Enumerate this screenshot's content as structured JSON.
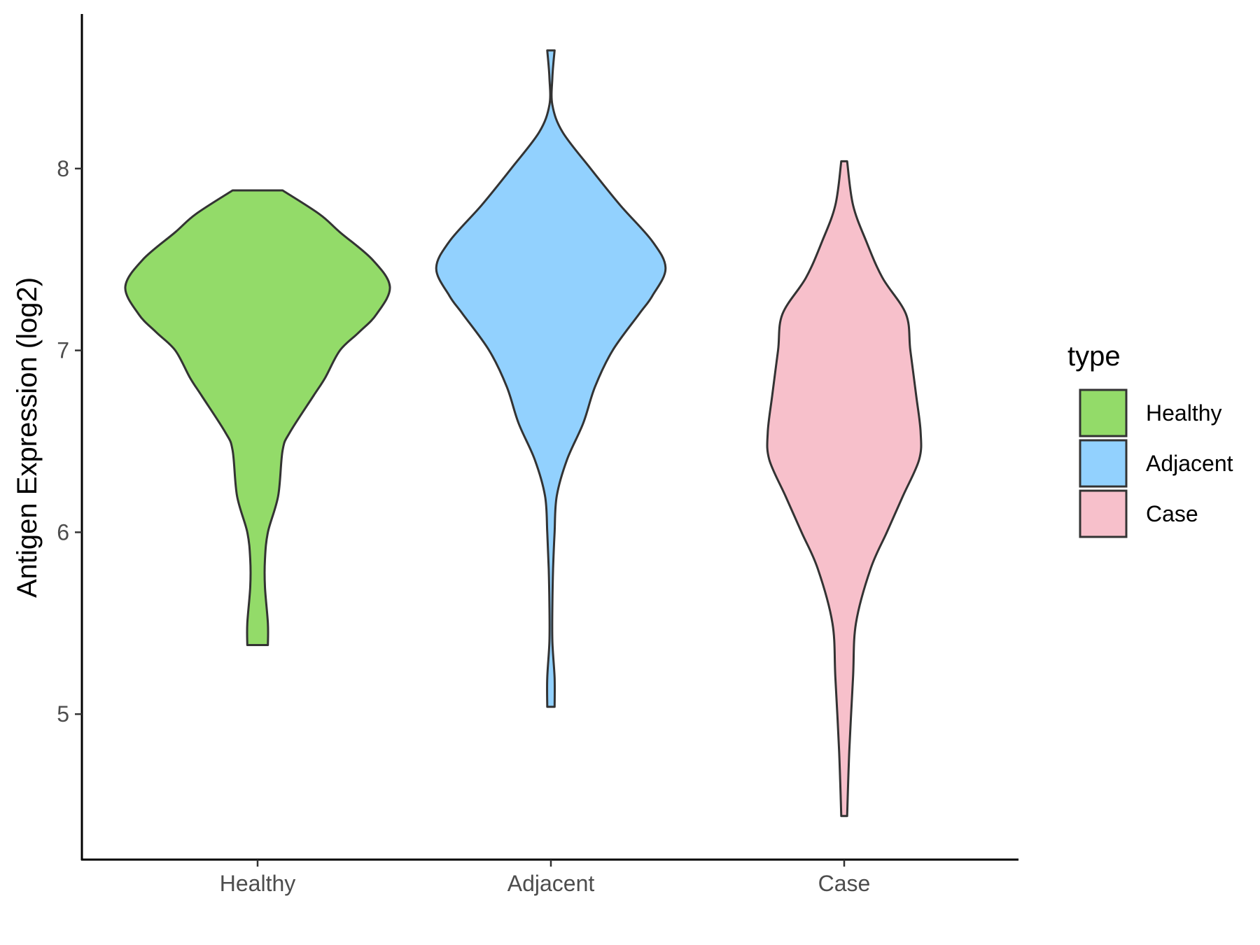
{
  "chart_data": {
    "type": "violin",
    "ylabel": "Antigen Expression (log2)",
    "xlabel": "",
    "ylim": [
      4.2,
      8.85
    ],
    "yticks": [
      5,
      6,
      7,
      8
    ],
    "categories": [
      "Healthy",
      "Adjacent",
      "Case"
    ],
    "legend": {
      "title": "type",
      "placement": "right"
    },
    "grid": false,
    "series": [
      {
        "name": "Healthy",
        "color": "#93DB69",
        "min": 5.38,
        "max": 7.88,
        "density": [
          [
            5.38,
            0.07
          ],
          [
            5.5,
            0.07
          ],
          [
            5.7,
            0.05
          ],
          [
            5.85,
            0.05
          ],
          [
            6.0,
            0.07
          ],
          [
            6.2,
            0.14
          ],
          [
            6.45,
            0.17
          ],
          [
            6.55,
            0.22
          ],
          [
            6.75,
            0.38
          ],
          [
            6.85,
            0.46
          ],
          [
            7.0,
            0.56
          ],
          [
            7.1,
            0.69
          ],
          [
            7.2,
            0.81
          ],
          [
            7.35,
            0.9
          ],
          [
            7.5,
            0.78
          ],
          [
            7.65,
            0.56
          ],
          [
            7.75,
            0.42
          ],
          [
            7.88,
            0.17
          ]
        ]
      },
      {
        "name": "Adjacent",
        "color": "#92D1FE",
        "min": 5.04,
        "max": 8.65,
        "density": [
          [
            5.04,
            0.025
          ],
          [
            5.2,
            0.025
          ],
          [
            5.4,
            0.01
          ],
          [
            5.6,
            0.01
          ],
          [
            5.8,
            0.015
          ],
          [
            6.0,
            0.025
          ],
          [
            6.2,
            0.04
          ],
          [
            6.4,
            0.11
          ],
          [
            6.6,
            0.22
          ],
          [
            6.8,
            0.3
          ],
          [
            7.0,
            0.42
          ],
          [
            7.2,
            0.6
          ],
          [
            7.3,
            0.69
          ],
          [
            7.45,
            0.78
          ],
          [
            7.6,
            0.69
          ],
          [
            7.8,
            0.47
          ],
          [
            8.0,
            0.27
          ],
          [
            8.2,
            0.08
          ],
          [
            8.35,
            0.01
          ],
          [
            8.5,
            0.01
          ],
          [
            8.65,
            0.025
          ]
        ]
      },
      {
        "name": "Case",
        "color": "#F7C0CB",
        "min": 4.44,
        "max": 8.04,
        "density": [
          [
            4.44,
            0.02
          ],
          [
            4.8,
            0.035
          ],
          [
            5.2,
            0.06
          ],
          [
            5.5,
            0.08
          ],
          [
            5.8,
            0.18
          ],
          [
            6.0,
            0.29
          ],
          [
            6.2,
            0.4
          ],
          [
            6.4,
            0.51
          ],
          [
            6.55,
            0.52
          ],
          [
            6.75,
            0.49
          ],
          [
            7.0,
            0.45
          ],
          [
            7.2,
            0.42
          ],
          [
            7.4,
            0.26
          ],
          [
            7.6,
            0.15
          ],
          [
            7.8,
            0.06
          ],
          [
            8.04,
            0.02
          ]
        ]
      }
    ]
  }
}
